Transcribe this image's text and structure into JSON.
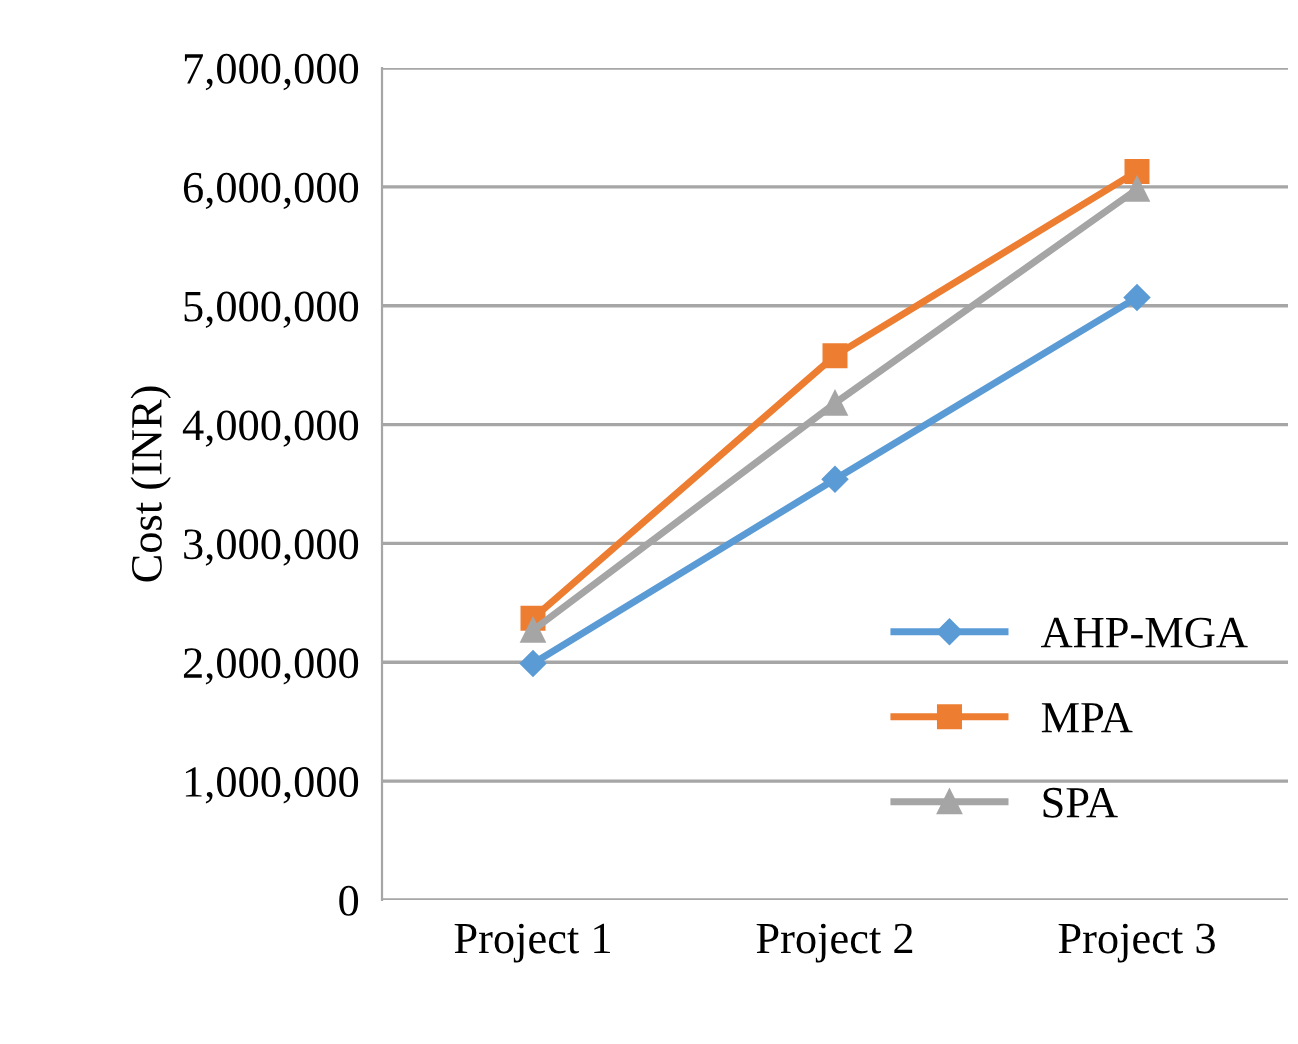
{
  "chart_data": {
    "type": "line",
    "ylabel": "Cost (INR)",
    "categories": [
      "Project 1",
      "Project 2",
      "Project 3"
    ],
    "series": [
      {
        "name": "AHP-MGA",
        "color": "#5b9bd5",
        "marker": "diamond",
        "values": [
          1990000,
          3540000,
          5070000
        ]
      },
      {
        "name": "MPA",
        "color": "#ed7d31",
        "marker": "square",
        "values": [
          2370000,
          4580000,
          6130000
        ]
      },
      {
        "name": "SPA",
        "color": "#a5a5a5",
        "marker": "triangle",
        "values": [
          2270000,
          4180000,
          5980000
        ]
      }
    ],
    "ylim": [
      0,
      7000000
    ],
    "yticks": [
      {
        "value": 0,
        "label": "0"
      },
      {
        "value": 1000000,
        "label": "1,000,000"
      },
      {
        "value": 2000000,
        "label": "2,000,000"
      },
      {
        "value": 3000000,
        "label": "3,000,000"
      },
      {
        "value": 4000000,
        "label": "4,000,000"
      },
      {
        "value": 5000000,
        "label": "5,000,000"
      },
      {
        "value": 6000000,
        "label": "6,000,000"
      },
      {
        "value": 7000000,
        "label": "7,000,000"
      }
    ],
    "grid": "y",
    "legend": "bottom right"
  }
}
